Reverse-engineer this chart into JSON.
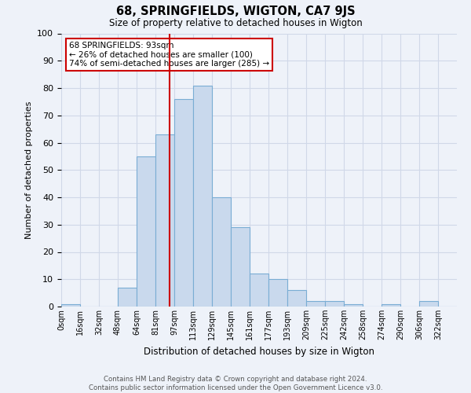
{
  "title": "68, SPRINGFIELDS, WIGTON, CA7 9JS",
  "subtitle": "Size of property relative to detached houses in Wigton",
  "xlabel": "Distribution of detached houses by size in Wigton",
  "ylabel": "Number of detached properties",
  "bin_labels": [
    "0sqm",
    "16sqm",
    "32sqm",
    "48sqm",
    "64sqm",
    "81sqm",
    "97sqm",
    "113sqm",
    "129sqm",
    "145sqm",
    "161sqm",
    "177sqm",
    "193sqm",
    "209sqm",
    "225sqm",
    "242sqm",
    "258sqm",
    "274sqm",
    "290sqm",
    "306sqm",
    "322sqm"
  ],
  "bar_heights": [
    1,
    0,
    0,
    7,
    55,
    63,
    76,
    81,
    40,
    29,
    12,
    10,
    6,
    2,
    2,
    1,
    0,
    1,
    0,
    2,
    0
  ],
  "bar_color": "#c9d9ed",
  "bar_edge_color": "#7aadd4",
  "grid_color": "#d0d8e8",
  "background_color": "#eef2f9",
  "vline_color": "#cc0000",
  "annotation_text": "68 SPRINGFIELDS: 93sqm\n← 26% of detached houses are smaller (100)\n74% of semi-detached houses are larger (285) →",
  "annotation_box_color": "#ffffff",
  "annotation_box_edge": "#cc0000",
  "ylim": [
    0,
    100
  ],
  "footnote": "Contains HM Land Registry data © Crown copyright and database right 2024.\nContains public sector information licensed under the Open Government Licence v3.0."
}
